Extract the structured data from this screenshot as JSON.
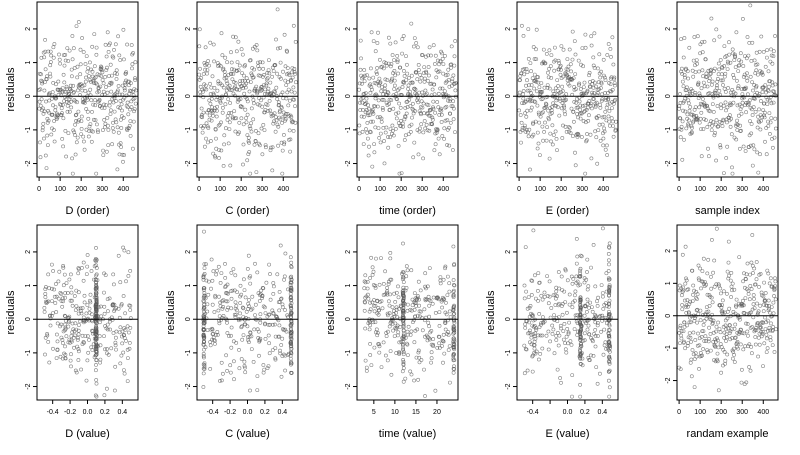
{
  "chart_data": [
    {
      "type": "scatter",
      "title": "",
      "xlabel": "D (order)",
      "ylabel": "residuals",
      "xlim": [
        -10,
        470
      ],
      "ylim": [
        -2.4,
        2.8
      ],
      "xticks": [
        0,
        100,
        200,
        300,
        400
      ],
      "yticks": [
        -2,
        -1,
        0,
        1,
        2
      ],
      "reference_line": 0,
      "n_points": 420,
      "pattern": "order",
      "xtick_labels": [
        "0",
        "100",
        "200",
        "300",
        "400"
      ],
      "ytick_labels": [
        "-2",
        "-1",
        "0",
        "1",
        "2"
      ],
      "bands": []
    },
    {
      "type": "scatter",
      "title": "",
      "xlabel": "C (order)",
      "ylabel": "residuals",
      "xlim": [
        -10,
        470
      ],
      "ylim": [
        -2.4,
        2.8
      ],
      "xticks": [
        0,
        100,
        200,
        300,
        400
      ],
      "yticks": [
        -2,
        -1,
        0,
        1,
        2
      ],
      "reference_line": 0,
      "n_points": 420,
      "pattern": "order",
      "xtick_labels": [
        "0",
        "100",
        "200",
        "300",
        "400"
      ],
      "ytick_labels": [
        "-2",
        "-1",
        "0",
        "1",
        "2"
      ],
      "bands": []
    },
    {
      "type": "scatter",
      "title": "",
      "xlabel": "time (order)",
      "ylabel": "residuals",
      "xlim": [
        -10,
        470
      ],
      "ylim": [
        -2.4,
        2.8
      ],
      "xticks": [
        0,
        100,
        200,
        300,
        400
      ],
      "yticks": [
        -2,
        -1,
        0,
        1,
        2
      ],
      "reference_line": 0,
      "n_points": 420,
      "pattern": "order",
      "xtick_labels": [
        "0",
        "100",
        "200",
        "300",
        "400"
      ],
      "ytick_labels": [
        "-2",
        "-1",
        "0",
        "1",
        "2"
      ],
      "bands": []
    },
    {
      "type": "scatter",
      "title": "",
      "xlabel": "E (order)",
      "ylabel": "residuals",
      "xlim": [
        -10,
        470
      ],
      "ylim": [
        -2.4,
        2.8
      ],
      "xticks": [
        0,
        100,
        200,
        300,
        400
      ],
      "yticks": [
        -2,
        -1,
        0,
        1,
        2
      ],
      "reference_line": 0,
      "n_points": 420,
      "pattern": "order",
      "xtick_labels": [
        "0",
        "100",
        "200",
        "300",
        "400"
      ],
      "ytick_labels": [
        "-2",
        "-1",
        "0",
        "1",
        "2"
      ],
      "bands": []
    },
    {
      "type": "scatter",
      "title": "",
      "xlabel": "sample index",
      "ylabel": "residuals",
      "xlim": [
        -10,
        470
      ],
      "ylim": [
        -2.4,
        2.8
      ],
      "xticks": [
        0,
        100,
        200,
        300,
        400
      ],
      "yticks": [
        -2,
        -1,
        0,
        1,
        2
      ],
      "reference_line": 0,
      "n_points": 420,
      "pattern": "order",
      "xtick_labels": [
        "0",
        "100",
        "200",
        "300",
        "400"
      ],
      "ytick_labels": [
        "-2",
        "-1",
        "0",
        "1",
        "2"
      ],
      "bands": []
    },
    {
      "type": "scatter",
      "title": "",
      "xlabel": "D (value)",
      "ylabel": "residuals",
      "xlim": [
        -0.58,
        0.58
      ],
      "ylim": [
        -2.4,
        2.8
      ],
      "xticks": [
        -0.4,
        -0.2,
        0.0,
        0.2,
        0.4
      ],
      "yticks": [
        -2,
        -1,
        0,
        1,
        2
      ],
      "reference_line": 0,
      "n_points": 420,
      "pattern": "value",
      "xtick_labels": [
        "-0.4",
        "-0.2",
        "0.0",
        "0.2",
        "0.4"
      ],
      "ytick_labels": [
        "-2",
        "-1",
        "0",
        "1",
        "2"
      ],
      "bands": [
        0.1
      ]
    },
    {
      "type": "scatter",
      "title": "",
      "xlabel": "C (value)",
      "ylabel": "residuals",
      "xlim": [
        -0.58,
        0.58
      ],
      "ylim": [
        -2.4,
        2.8
      ],
      "xticks": [
        -0.4,
        -0.2,
        0.0,
        0.2,
        0.4
      ],
      "yticks": [
        -2,
        -1,
        0,
        1,
        2
      ],
      "reference_line": 0,
      "n_points": 420,
      "pattern": "value",
      "xtick_labels": [
        "-0.4",
        "-0.2",
        "0.0",
        "0.2",
        "0.4"
      ],
      "ytick_labels": [
        "-2",
        "-1",
        "0",
        "1",
        "2"
      ],
      "bands": [
        -0.5,
        0.5
      ]
    },
    {
      "type": "scatter",
      "title": "",
      "xlabel": "time (value)",
      "ylabel": "residuals",
      "xlim": [
        1,
        25
      ],
      "ylim": [
        -2.4,
        2.8
      ],
      "xticks": [
        5,
        10,
        15,
        20
      ],
      "yticks": [
        -2,
        -1,
        0,
        1,
        2
      ],
      "reference_line": 0,
      "n_points": 420,
      "pattern": "value",
      "xtick_labels": [
        "5",
        "10",
        "15",
        "20"
      ],
      "ytick_labels": [
        "-2",
        "-1",
        "0",
        "1",
        "2"
      ],
      "bands": [
        12,
        24
      ]
    },
    {
      "type": "scatter",
      "title": "",
      "xlabel": "E (value)",
      "ylabel": "residuals",
      "xlim": [
        -0.58,
        0.58
      ],
      "ylim": [
        -2.4,
        2.8
      ],
      "xticks": [
        -0.4,
        -0.2,
        0.0,
        0.2,
        0.4
      ],
      "yticks": [
        -2,
        -1,
        0,
        1,
        2
      ],
      "reference_line": 0,
      "n_points": 420,
      "pattern": "value",
      "xtick_labels": [
        "-0.4",
        "",
        "0.0",
        "0.2",
        "0.4"
      ],
      "ytick_labels": [
        "-2",
        "-1",
        "0",
        "1",
        "2"
      ],
      "bands": [
        0.15,
        0.48
      ]
    },
    {
      "type": "scatter",
      "title": "",
      "xlabel": "randam example",
      "ylabel": "residuals",
      "xlim": [
        -10,
        470
      ],
      "ylim": [
        -2.6,
        2.8
      ],
      "xticks": [
        0,
        100,
        200,
        300,
        400
      ],
      "yticks": [
        -2,
        -1,
        0,
        1,
        2
      ],
      "reference_line": 0,
      "n_points": 420,
      "pattern": "order",
      "xtick_labels": [
        "0",
        "100",
        "200",
        "300",
        "400"
      ],
      "ytick_labels": [
        "-2",
        "-1",
        "0",
        "1",
        "2"
      ],
      "bands": []
    }
  ]
}
